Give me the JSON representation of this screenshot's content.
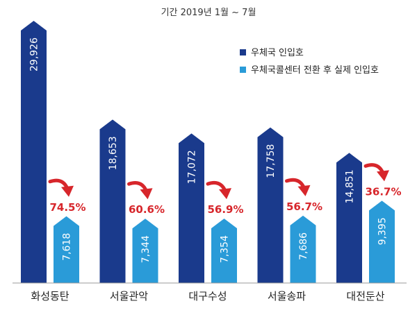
{
  "chart_data": {
    "type": "bar",
    "title": "",
    "subtitle": "기간 2019년 1월 ~ 7월",
    "categories": [
      "화성동탄",
      "서울관악",
      "대구수성",
      "서울송파",
      "대전둔산"
    ],
    "series": [
      {
        "name": "우체국 인입호",
        "color": "#1a3a8c",
        "values": [
          29926,
          18653,
          17072,
          17758,
          14851
        ],
        "labels": [
          "29,926",
          "18,653",
          "17,072",
          "17,758",
          "14,851"
        ]
      },
      {
        "name": "우체국콜센터 전환 후 실제 인입호",
        "color": "#2a9bd8",
        "values": [
          7618,
          7344,
          7354,
          7686,
          9395
        ],
        "labels": [
          "7,618",
          "7,344",
          "7,354",
          "7,686",
          "9,395"
        ]
      }
    ],
    "annotations": [
      "74.5%",
      "60.6%",
      "56.9%",
      "56.7%",
      "36.7%"
    ],
    "annotation_color": "#d7262b",
    "legend_position": "top-right",
    "grid": false
  }
}
